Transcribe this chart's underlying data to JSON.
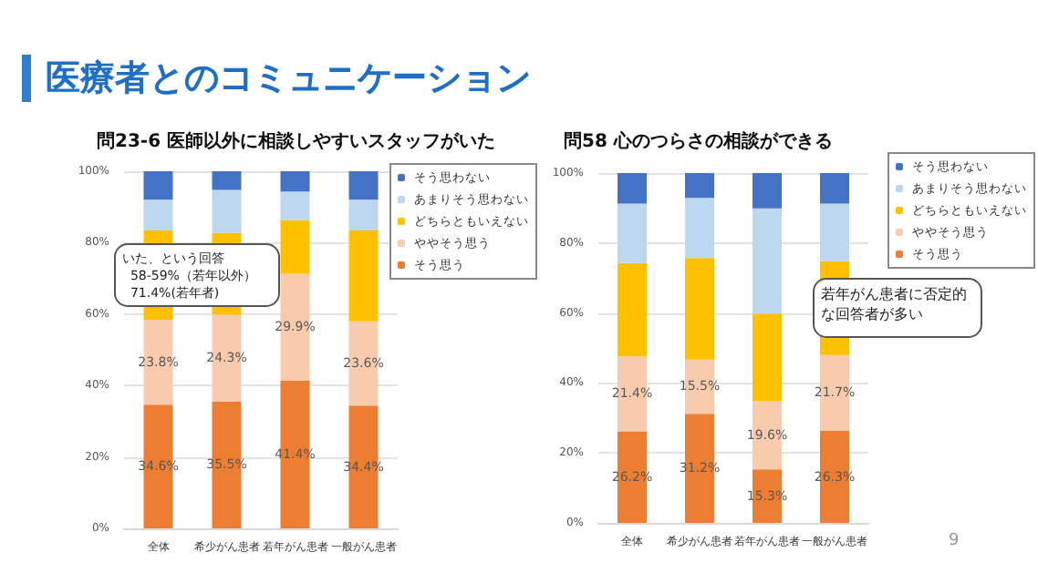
{
  "chart_data": [
    {
      "type": "bar",
      "title": "問23-6 医師以外に相談しやすいスタッフがいた",
      "categories": [
        "全体",
        "希少がん患者",
        "若年がん患者",
        "一般がん患者"
      ],
      "stacked": true,
      "ylim": [
        0,
        100
      ],
      "yticks": [
        {
          "value": 0,
          "label": "0%"
        },
        {
          "value": 20,
          "label": "20%"
        },
        {
          "value": 40,
          "label": "40%"
        },
        {
          "value": 60,
          "label": "60%"
        },
        {
          "value": 80,
          "label": "80%"
        },
        {
          "value": 100,
          "label": "100%"
        }
      ],
      "grid": "y",
      "legend": "right",
      "series": [
        {
          "name": "そう思う",
          "color": "#ed7d31",
          "values": [
            34.6,
            35.5,
            41.4,
            34.4
          ],
          "value_labels": [
            "34.6%",
            "35.5%",
            "41.4%",
            "34.4%"
          ]
        },
        {
          "name": "ややそう思う",
          "color": "#f8cbad",
          "values": [
            23.8,
            24.3,
            29.9,
            23.6
          ],
          "value_labels": [
            "23.8%",
            "24.3%",
            "29.9%",
            "23.6%"
          ]
        },
        {
          "name": "どちらともいえない",
          "color": "#ffc000",
          "values": [
            25.0,
            23.0,
            15.0,
            25.4
          ],
          "value_labels": [
            null,
            null,
            null,
            null
          ]
        },
        {
          "name": "あまりそう思わない",
          "color": "#bdd7ee",
          "values": [
            8.6,
            12.0,
            8.0,
            8.6
          ],
          "value_labels": [
            null,
            null,
            null,
            null
          ]
        },
        {
          "name": "そう思わない",
          "color": "#4472c4",
          "values": [
            8.0,
            5.2,
            5.7,
            8.0
          ],
          "value_labels": [
            null,
            null,
            null,
            null
          ]
        }
      ],
      "annotations": [
        "医療者とのコミュニケーション",
        "いた、という回答\n  58-59%（若年以外）\n  71.4%(若年者)"
      ]
    },
    {
      "type": "bar",
      "title": "問58 心のつらさの相談ができる",
      "categories": [
        "全体",
        "希少がん患者",
        "若年がん患者",
        "一般がん患者"
      ],
      "stacked": true,
      "ylim": [
        0,
        100
      ],
      "yticks": [
        {
          "value": 0,
          "label": "0%"
        },
        {
          "value": 20,
          "label": "20%"
        },
        {
          "value": 40,
          "label": "40%"
        },
        {
          "value": 60,
          "label": "60%"
        },
        {
          "value": 80,
          "label": "80%"
        },
        {
          "value": 100,
          "label": "100%"
        }
      ],
      "grid": "y",
      "legend": "right",
      "series": [
        {
          "name": "そう思う",
          "color": "#ed7d31",
          "values": [
            26.2,
            31.2,
            15.3,
            26.3
          ],
          "value_labels": [
            "26.2%",
            "31.2%",
            "15.3%",
            "26.3%"
          ]
        },
        {
          "name": "ややそう思う",
          "color": "#f8cbad",
          "values": [
            21.4,
            15.5,
            19.6,
            21.7
          ],
          "value_labels": [
            "21.4%",
            "15.5%",
            "19.6%",
            "21.7%"
          ]
        },
        {
          "name": "どちらともいえない",
          "color": "#ffc000",
          "values": [
            26.7,
            29.0,
            24.9,
            26.8
          ],
          "value_labels": [
            null,
            null,
            null,
            null
          ]
        },
        {
          "name": "あまりそう思わない",
          "color": "#bdd7ee",
          "values": [
            17.0,
            17.2,
            30.1,
            16.5
          ],
          "value_labels": [
            null,
            null,
            null,
            null
          ]
        },
        {
          "name": "そう思わない",
          "color": "#4472c4",
          "values": [
            8.7,
            7.1,
            10.1,
            8.7
          ],
          "value_labels": [
            null,
            null,
            null,
            null
          ]
        }
      ],
      "annotations": [
        "若年がん患者に否定的な回答者が多い",
        "9"
      ]
    }
  ]
}
